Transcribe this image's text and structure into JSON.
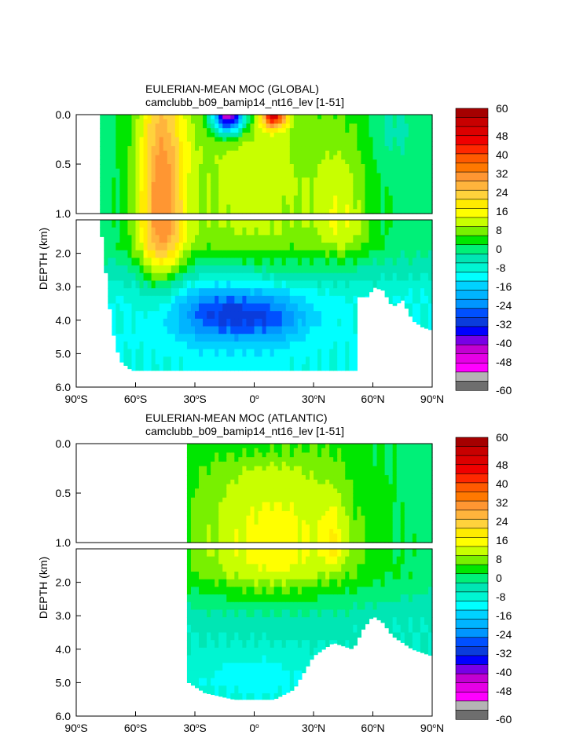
{
  "colors": {
    "fill": [
      "#6e6e6e",
      "#b4b4b4",
      "#ff00ff",
      "#e600e6",
      "#c300d2",
      "#7800e6",
      "#0000ff",
      "#0a3cdc",
      "#0050ff",
      "#0096ff",
      "#00b4ff",
      "#00d2ff",
      "#00ffff",
      "#00f5d2",
      "#00e6b4",
      "#00f078",
      "#00e600",
      "#78f000",
      "#c8ff00",
      "#ffff00",
      "#ffeb00",
      "#ffd23c",
      "#ffb43c",
      "#ff9632",
      "#ff7800",
      "#ff5a00",
      "#ff2800",
      "#f00000",
      "#dc0000",
      "#c80000",
      "#a50000"
    ],
    "land": "#ffffff",
    "line": "#000000"
  },
  "chart_data": [
    {
      "type": "contour",
      "title": "EULERIAN-MEAN MOC (GLOBAL)",
      "subtitle": "camclubb_b09_bamip14_nt16_lev [1-51]",
      "ylabel": "DEPTH (km)",
      "xlim": [
        -90,
        90
      ],
      "ylim": [
        6.0,
        0.0
      ],
      "upper_panel_depth_range": [
        0.0,
        1.0
      ],
      "lower_panel_depth_range": [
        1.0,
        6.0
      ],
      "x_ticks": [
        "90°S",
        "60°S",
        "30°S",
        "0°",
        "30°N",
        "60°N",
        "90°N"
      ],
      "y_ticks_upper": [
        "0.0",
        "0.5",
        "1.0"
      ],
      "y_ticks_lower": [
        "2.0",
        "3.0",
        "4.0",
        "5.0",
        "6.0"
      ],
      "contour_levels": [
        -60,
        -56,
        -52,
        -48,
        -44,
        -40,
        -36,
        -32,
        -28,
        -24,
        -20,
        -16,
        -12,
        -8,
        -4,
        0,
        4,
        8,
        12,
        16,
        20,
        24,
        28,
        32,
        36,
        40,
        44,
        48,
        52,
        56,
        60
      ],
      "colorbar_labels": [
        "60",
        "48",
        "40",
        "32",
        "24",
        "16",
        "8",
        "0",
        "-8",
        "-16",
        "-24",
        "-32",
        "-40",
        "-48",
        "-60"
      ],
      "ocean_lat_range": [
        -78,
        90
      ],
      "features": [
        {
          "lat": -47,
          "depth": 1.0,
          "value": 30,
          "sx": 12,
          "sz": 1.9
        },
        {
          "lat": -13,
          "depth": 0.0,
          "value": -56,
          "sx": 8,
          "sz": 0.18
        },
        {
          "lat": 10,
          "depth": 0.0,
          "value": 44,
          "sx": 6,
          "sz": 0.13
        },
        {
          "lat": 0,
          "depth": 0.7,
          "value": 12,
          "sx": 45,
          "sz": 1.7
        },
        {
          "lat": 45,
          "depth": 1.2,
          "value": 10,
          "sx": 14,
          "sz": 1.0
        },
        {
          "lat": -20,
          "depth": 3.8,
          "value": -18,
          "sx": 25,
          "sz": 0.9
        },
        {
          "lat": 8,
          "depth": 3.9,
          "value": -14,
          "sx": 22,
          "sz": 0.8
        },
        {
          "lat": 70,
          "depth": 0.15,
          "value": -4,
          "sx": 12,
          "sz": 0.4
        }
      ],
      "base_value": 2,
      "deep_base_value": -8,
      "bathymetry": [
        [
          -90,
          0
        ],
        [
          -78,
          0
        ],
        [
          -77,
          1.5
        ],
        [
          -72,
          4.2
        ],
        [
          -68,
          5.2
        ],
        [
          -62,
          5.5
        ],
        [
          -55,
          5.5
        ],
        [
          -40,
          5.5
        ],
        [
          -20,
          5.5
        ],
        [
          0,
          5.5
        ],
        [
          20,
          5.5
        ],
        [
          40,
          5.5
        ],
        [
          52,
          5.5
        ],
        [
          53,
          3.3
        ],
        [
          58,
          3.3
        ],
        [
          60,
          3.0
        ],
        [
          65,
          3.1
        ],
        [
          70,
          3.6
        ],
        [
          75,
          3.4
        ],
        [
          80,
          4.0
        ],
        [
          85,
          4.2
        ],
        [
          90,
          4.3
        ]
      ]
    },
    {
      "type": "contour",
      "title": "EULERIAN-MEAN MOC (ATLANTIC)",
      "subtitle": "camclubb_b09_bamip14_nt16_lev [1-51]",
      "ylabel": "DEPTH (km)",
      "xlim": [
        -90,
        90
      ],
      "ylim": [
        6.0,
        0.0
      ],
      "upper_panel_depth_range": [
        0.0,
        1.0
      ],
      "lower_panel_depth_range": [
        1.0,
        6.0
      ],
      "x_ticks": [
        "90°S",
        "60°S",
        "30°S",
        "0°",
        "30°N",
        "60°N",
        "90°N"
      ],
      "y_ticks_upper": [
        "0.0",
        "0.5",
        "1.0"
      ],
      "y_ticks_lower": [
        "2.0",
        "3.0",
        "4.0",
        "5.0",
        "6.0"
      ],
      "contour_levels": [
        -60,
        -56,
        -52,
        -48,
        -44,
        -40,
        -36,
        -32,
        -28,
        -24,
        -20,
        -16,
        -12,
        -8,
        -4,
        0,
        4,
        8,
        12,
        16,
        20,
        24,
        28,
        32,
        36,
        40,
        44,
        48,
        52,
        56,
        60
      ],
      "colorbar_labels": [
        "60",
        "48",
        "40",
        "32",
        "24",
        "16",
        "8",
        "0",
        "-8",
        "-16",
        "-24",
        "-32",
        "-40",
        "-48",
        "-60"
      ],
      "ocean_lat_range": [
        -34,
        90
      ],
      "features": [
        {
          "lat": 10,
          "depth": 1.1,
          "value": 16,
          "sx": 45,
          "sz": 1.4
        },
        {
          "lat": 40,
          "depth": 1.0,
          "value": 8,
          "sx": 6,
          "sz": 0.5
        },
        {
          "lat": 5,
          "depth": 0.05,
          "value": -4,
          "sx": 25,
          "sz": 0.15
        },
        {
          "lat": 0,
          "depth": 4.9,
          "value": -6,
          "sx": 35,
          "sz": 0.8
        }
      ],
      "base_value": 2,
      "deep_base_value": -4,
      "bathymetry": [
        [
          -34,
          0
        ],
        [
          -33,
          5.0
        ],
        [
          -25,
          5.3
        ],
        [
          -10,
          5.5
        ],
        [
          0,
          5.5
        ],
        [
          10,
          5.5
        ],
        [
          20,
          5.2
        ],
        [
          30,
          4.2
        ],
        [
          40,
          3.8
        ],
        [
          50,
          4.0
        ],
        [
          55,
          3.4
        ],
        [
          60,
          3.0
        ],
        [
          65,
          3.2
        ],
        [
          70,
          3.6
        ],
        [
          80,
          4.0
        ],
        [
          90,
          4.2
        ]
      ]
    }
  ]
}
